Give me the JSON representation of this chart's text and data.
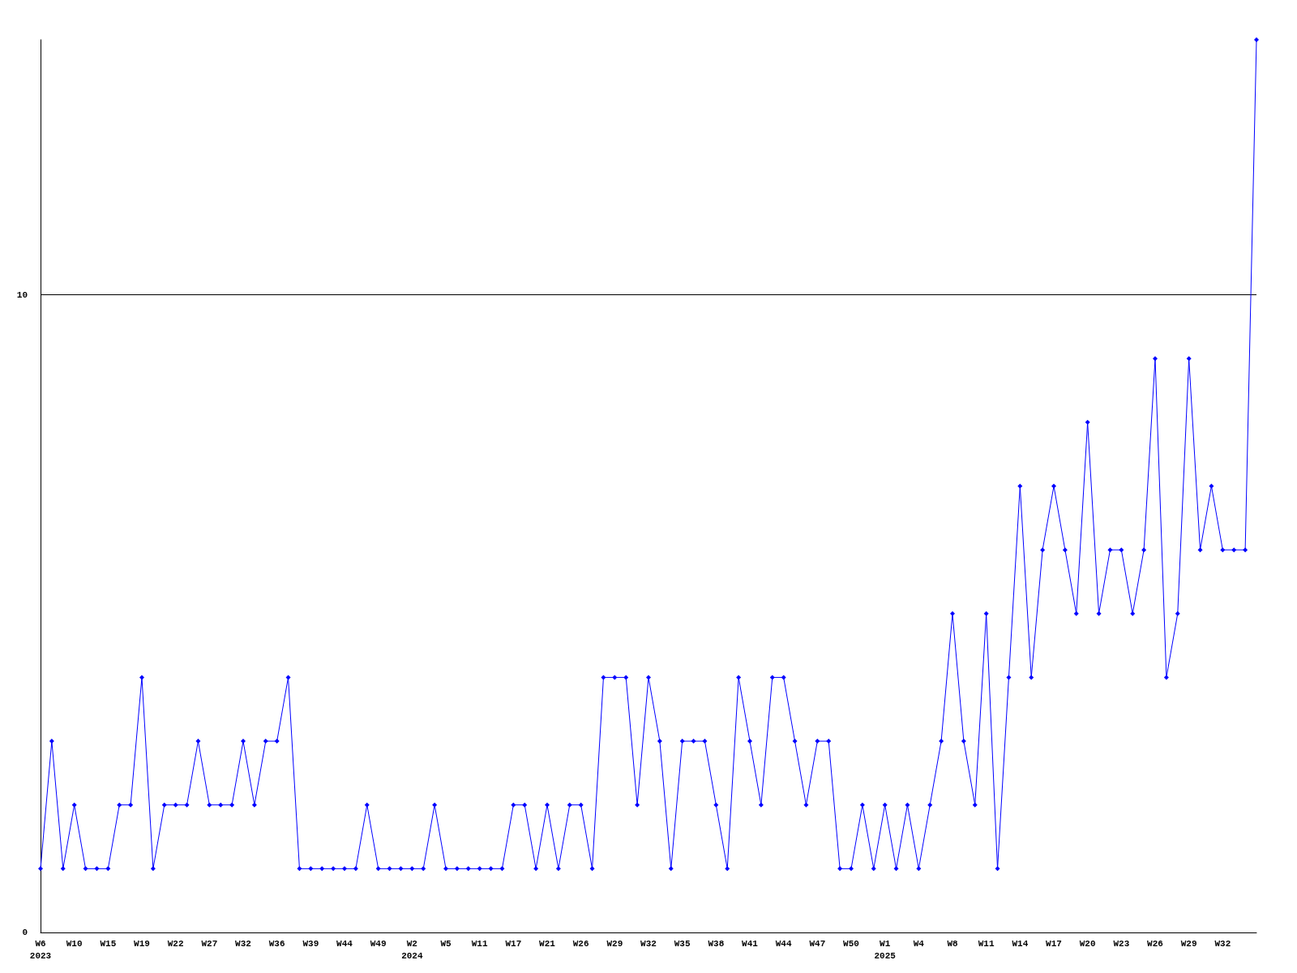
{
  "chart_data": {
    "type": "line",
    "categories": [
      "W6\n2023",
      null,
      null,
      "W10",
      null,
      null,
      "W15",
      null,
      null,
      "W19",
      null,
      null,
      "W22",
      null,
      null,
      "W27",
      null,
      null,
      "W32",
      null,
      null,
      "W36",
      null,
      null,
      "W39",
      null,
      null,
      "W44",
      null,
      null,
      "W49",
      null,
      null,
      "W2\n2024",
      null,
      null,
      "W5",
      null,
      null,
      "W11",
      null,
      null,
      "W17",
      null,
      null,
      "W21",
      null,
      null,
      "W26",
      null,
      null,
      "W29",
      null,
      null,
      "W32",
      null,
      null,
      "W35",
      null,
      null,
      "W38",
      null,
      null,
      "W41",
      null,
      null,
      "W44",
      null,
      null,
      "W47",
      null,
      null,
      "W50",
      null,
      null,
      "W1\n2025",
      null,
      null,
      "W4",
      null,
      null,
      "W8",
      null,
      null,
      "W11",
      null,
      null,
      "W14",
      null,
      null,
      "W17",
      null,
      null,
      "W20",
      null,
      null,
      "W23",
      null,
      null,
      "W26",
      null,
      null,
      "W29",
      null,
      null,
      "W32",
      null,
      null,
      null
    ],
    "series": [
      {
        "color": "#0000ff",
        "values": [
          1,
          3,
          1,
          2,
          1,
          1,
          1,
          2,
          2,
          4,
          1,
          2,
          2,
          2,
          3,
          2,
          2,
          2,
          3,
          2,
          3,
          3,
          4,
          1,
          1,
          1,
          1,
          1,
          1,
          2,
          1,
          1,
          1,
          1,
          1,
          2,
          1,
          1,
          1,
          1,
          1,
          1,
          2,
          2,
          1,
          2,
          1,
          2,
          2,
          1,
          4,
          4,
          4,
          2,
          4,
          3,
          1,
          3,
          3,
          3,
          2,
          1,
          4,
          3,
          2,
          4,
          4,
          3,
          2,
          3,
          3,
          1,
          1,
          2,
          1,
          2,
          1,
          2,
          1,
          2,
          3,
          5,
          3,
          2,
          5,
          1,
          4,
          7,
          4,
          6,
          7,
          6,
          5,
          8,
          5,
          6,
          6,
          5,
          6,
          9,
          4,
          5,
          9,
          6,
          7,
          6,
          6,
          6,
          14
        ]
      }
    ],
    "ylim": [
      0,
      14
    ],
    "yticks": [
      0,
      10
    ],
    "grid": "y",
    "marker": "diamond",
    "line_style": "solid"
  }
}
